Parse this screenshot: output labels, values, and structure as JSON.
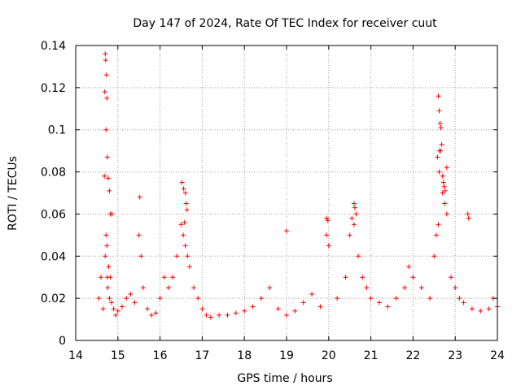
{
  "chart_data": {
    "type": "scatter",
    "title": "Day 147 of 2024, Rate Of TEC Index for receiver cuut",
    "xlabel": "GPS time / hours",
    "ylabel": "ROTI / TECUs",
    "xlim": [
      14,
      24
    ],
    "ylim": [
      0,
      0.14
    ],
    "grid": true,
    "marker": "+",
    "color": "#ff0000",
    "x_ticks": [
      14,
      15,
      16,
      17,
      18,
      19,
      20,
      21,
      22,
      23,
      24
    ],
    "x_tick_labels": [
      "14",
      "15",
      "16",
      "17",
      "18",
      "19",
      "20",
      "21",
      "22",
      "23",
      "24"
    ],
    "y_ticks": [
      0,
      0.02,
      0.04,
      0.06,
      0.08,
      0.1,
      0.12,
      0.14
    ],
    "y_tick_labels": [
      "0",
      "0.02",
      "0.04",
      "0.06",
      "0.08",
      "0.1",
      "0.12",
      "0.14"
    ],
    "series": [
      {
        "name": "ROTI",
        "x": [
          14.55,
          14.6,
          14.65,
          14.7,
          14.72,
          14.74,
          14.75,
          14.76,
          14.78,
          14.8,
          14.82,
          14.85,
          14.9,
          14.95,
          15.0,
          15.1,
          15.2,
          15.3,
          15.4,
          15.5,
          15.55,
          15.6,
          15.7,
          15.8,
          15.9,
          16.0,
          16.1,
          16.2,
          16.3,
          16.4,
          16.5,
          16.55,
          16.6,
          16.65,
          16.7,
          16.8,
          16.9,
          17.0,
          17.1,
          17.2,
          17.4,
          17.6,
          17.8,
          18.0,
          18.2,
          18.4,
          18.6,
          18.8,
          19.0,
          19.2,
          19.4,
          19.6,
          19.8,
          19.95,
          20.0,
          20.2,
          20.4,
          20.5,
          20.6,
          20.65,
          20.7,
          20.8,
          20.9,
          21.0,
          21.2,
          21.4,
          21.6,
          21.8,
          21.9,
          22.0,
          22.2,
          22.4,
          22.5,
          22.55,
          22.6,
          22.62,
          22.65,
          22.7,
          22.75,
          22.8,
          22.9,
          23.0,
          23.1,
          23.2,
          23.4,
          23.6,
          23.8,
          23.9,
          24.0,
          14.7,
          14.71,
          14.73,
          14.74,
          14.69,
          14.72,
          14.75,
          14.68,
          14.77,
          14.8,
          14.82,
          14.86,
          15.52,
          16.52,
          16.56,
          16.6,
          16.62,
          16.64,
          16.58,
          22.6,
          22.62,
          22.64,
          22.66,
          22.68,
          22.63,
          22.58,
          22.7,
          22.72,
          22.74,
          22.76,
          22.8,
          23.3,
          23.32,
          20.55,
          20.6,
          20.62,
          19.95,
          19.98,
          19.0
        ],
        "y": [
          0.02,
          0.03,
          0.015,
          0.04,
          0.05,
          0.045,
          0.03,
          0.025,
          0.035,
          0.02,
          0.03,
          0.018,
          0.015,
          0.012,
          0.014,
          0.016,
          0.02,
          0.022,
          0.018,
          0.05,
          0.04,
          0.025,
          0.015,
          0.012,
          0.013,
          0.02,
          0.03,
          0.025,
          0.03,
          0.04,
          0.055,
          0.05,
          0.045,
          0.04,
          0.035,
          0.025,
          0.02,
          0.015,
          0.012,
          0.011,
          0.012,
          0.012,
          0.013,
          0.014,
          0.016,
          0.02,
          0.025,
          0.015,
          0.012,
          0.014,
          0.018,
          0.022,
          0.016,
          0.05,
          0.045,
          0.02,
          0.03,
          0.05,
          0.055,
          0.06,
          0.04,
          0.03,
          0.025,
          0.02,
          0.018,
          0.016,
          0.02,
          0.025,
          0.035,
          0.03,
          0.025,
          0.02,
          0.04,
          0.05,
          0.055,
          0.08,
          0.09,
          0.07,
          0.065,
          0.06,
          0.03,
          0.025,
          0.02,
          0.018,
          0.015,
          0.014,
          0.015,
          0.02,
          0.016,
          0.136,
          0.133,
          0.126,
          0.115,
          0.118,
          0.1,
          0.087,
          0.078,
          0.077,
          0.071,
          0.06,
          0.06,
          0.068,
          0.075,
          0.072,
          0.07,
          0.065,
          0.062,
          0.056,
          0.116,
          0.109,
          0.103,
          0.101,
          0.093,
          0.09,
          0.087,
          0.078,
          0.075,
          0.073,
          0.071,
          0.082,
          0.06,
          0.058,
          0.058,
          0.065,
          0.063,
          0.058,
          0.057,
          0.052
        ]
      }
    ]
  }
}
